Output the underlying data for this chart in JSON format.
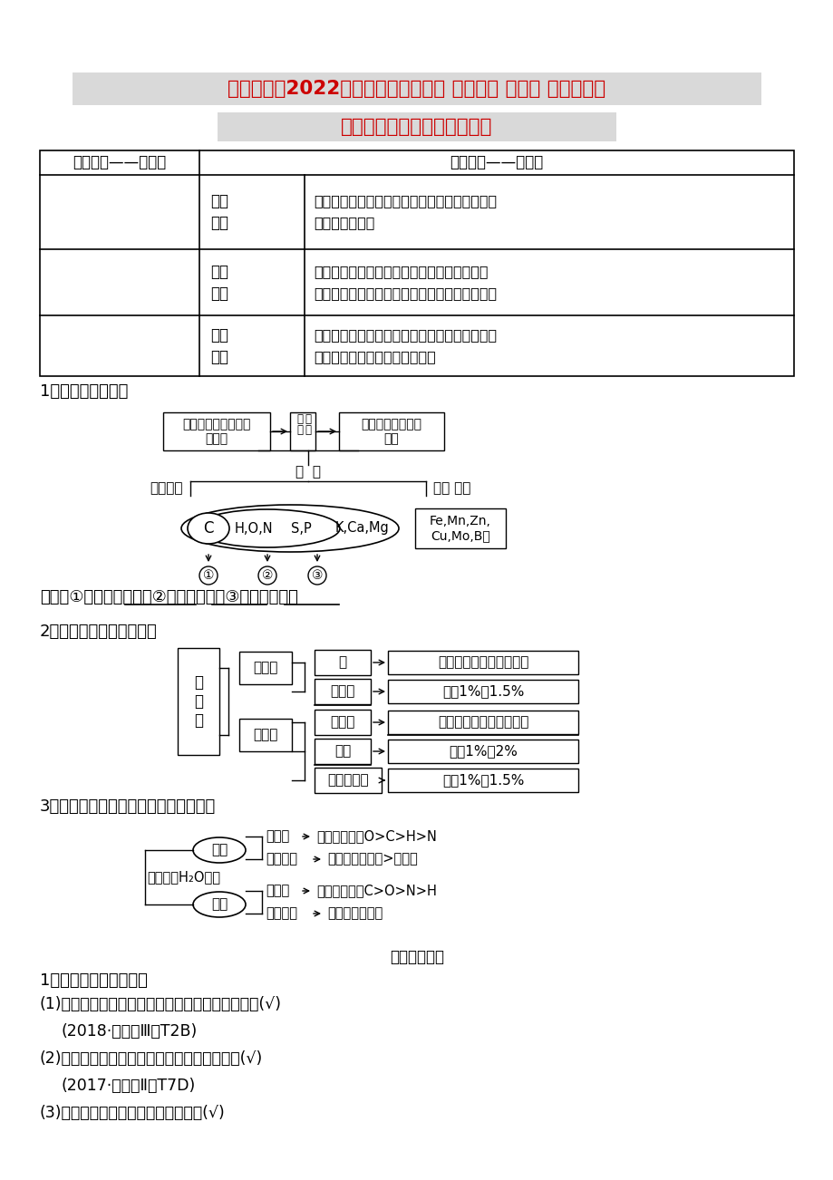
{
  "bg_color": "#ffffff",
  "title_line1": "（通用版）2022年高考生物一轮复习 第一单元 第二讲 组成细胞的",
  "title_line2": "元素及化合物学案（含解析）",
  "title_bg": "#d9d9d9",
  "title_color": "#cc0000",
  "title_fontsize": 15.5,
  "section1_label": "1．组成细胞的元素",
  "section2_label": "2．归类组成细胞的化合物",
  "section3_label": "3．区分元素和化合物含量的鲜重、干重",
  "base_test_label": "［基础自测］",
  "judge_label": "1．判断下列叙述的正误",
  "judge_items": [
    "(1)细胞的核膜、内质网膜和细胞膜中都含有磷元素(√)",
    "(2018·全国卷Ⅲ，T2B)",
    "(2)碘是人体必需的微量元素，但不宜摄入过多(√)",
    "(2017·全国卷Ⅱ，T7D)",
    "(3)在人体活细胞中氢原子的数目最多(√)"
  ],
  "table_header": [
    "知识体系——定内容",
    "核心素养——定能力"
  ],
  "table_col2_labels": [
    "生命\n观念",
    "科学\n思维",
    "科学\n探究"
  ],
  "table_col3_texts": [
    [
      "通过分析水与细胞代谢及抗逆性的关系，建立起",
      "普遍联系的观点"
    ],
    [
      "通过识图推断细胞中元素和化合物的含量及化",
      "合物的元素组成，培养图文转换能力和判断能力"
    ],
    [
      "通过探究植物生长必需无机盐的作用，掌握实验",
      "设计的对照原则和单一变量原则"
    ]
  ]
}
